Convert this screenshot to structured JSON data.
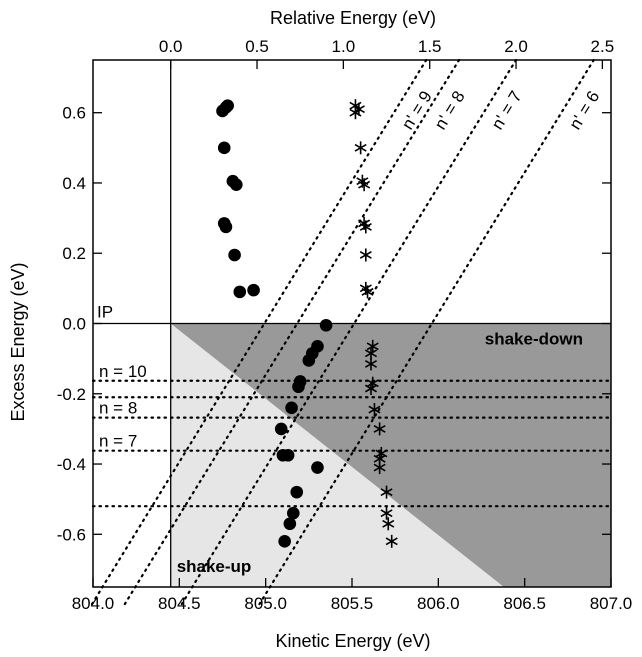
{
  "chart_data": {
    "type": "scatter",
    "title": "",
    "xlabel": "Kinetic Energy (eV)",
    "ylabel": "Excess Energy (eV)",
    "x2label": "Relative Energy (eV)",
    "xlim": [
      804.0,
      807.0
    ],
    "ylim": [
      -0.75,
      0.75
    ],
    "x_ticks": [
      "804.0",
      "804.5",
      "805.0",
      "805.5",
      "806.0",
      "806.5",
      "807.0"
    ],
    "x2_ticks": [
      "0.0",
      "0.5",
      "1.0",
      "1.5",
      "2.0",
      "2.5"
    ],
    "y_ticks": [
      "-0.6",
      "-0.4",
      "-0.2",
      "0.0",
      "0.2",
      "0.4",
      "0.6"
    ],
    "ip_energy": 804.45,
    "ip_label": "IP",
    "regions": {
      "shake_up": {
        "label": "shake-up",
        "color": "#e6e6e6"
      },
      "shake_down": {
        "label": "shake-down",
        "color": "#999999"
      }
    },
    "dotted_levels": [
      {
        "y": -0.163,
        "label": "n = 10"
      },
      {
        "y": -0.21,
        "label": ""
      },
      {
        "y": -0.268,
        "label": "n = 8"
      },
      {
        "y": -0.362,
        "label": "n = 7"
      },
      {
        "y": -0.52,
        "label": ""
      }
    ],
    "rydberg_lines": [
      {
        "label": "n' = 9",
        "x_at_top": 805.93
      },
      {
        "label": "n' = 8",
        "x_at_top": 806.12
      },
      {
        "label": "n' = 7",
        "x_at_top": 806.45
      },
      {
        "label": "n' = 6",
        "x_at_top": 806.9
      }
    ],
    "rydberg_slope_ev_per_ev": 0.8,
    "series": [
      {
        "marker": "circle",
        "points": [
          [
            804.75,
            0.605
          ],
          [
            804.77,
            0.615
          ],
          [
            804.78,
            0.62
          ],
          [
            804.76,
            0.5
          ],
          [
            804.81,
            0.405
          ],
          [
            804.83,
            0.395
          ],
          [
            804.76,
            0.285
          ],
          [
            804.77,
            0.275
          ],
          [
            804.82,
            0.195
          ],
          [
            804.85,
            0.09
          ],
          [
            804.93,
            0.095
          ],
          [
            805.35,
            -0.005
          ],
          [
            805.3,
            -0.065
          ],
          [
            805.27,
            -0.085
          ],
          [
            805.25,
            -0.105
          ],
          [
            805.2,
            -0.165
          ],
          [
            805.19,
            -0.18
          ],
          [
            805.15,
            -0.24
          ],
          [
            805.09,
            -0.3
          ],
          [
            805.1,
            -0.375
          ],
          [
            805.13,
            -0.375
          ],
          [
            805.3,
            -0.41
          ],
          [
            805.18,
            -0.48
          ],
          [
            805.16,
            -0.54
          ],
          [
            805.14,
            -0.57
          ],
          [
            805.11,
            -0.62
          ]
        ]
      },
      {
        "marker": "asterisk",
        "points": [
          [
            805.52,
            0.62
          ],
          [
            805.54,
            0.61
          ],
          [
            805.52,
            0.6
          ],
          [
            805.55,
            0.5
          ],
          [
            805.56,
            0.405
          ],
          [
            805.57,
            0.395
          ],
          [
            805.57,
            0.285
          ],
          [
            805.58,
            0.275
          ],
          [
            805.58,
            0.195
          ],
          [
            805.58,
            0.1
          ],
          [
            805.59,
            0.09
          ],
          [
            805.62,
            -0.065
          ],
          [
            805.61,
            -0.085
          ],
          [
            805.61,
            -0.115
          ],
          [
            805.62,
            -0.17
          ],
          [
            805.61,
            -0.185
          ],
          [
            805.63,
            -0.245
          ],
          [
            805.66,
            -0.3
          ],
          [
            805.67,
            -0.37
          ],
          [
            805.66,
            -0.385
          ],
          [
            805.66,
            -0.41
          ],
          [
            805.7,
            -0.48
          ],
          [
            805.7,
            -0.54
          ],
          [
            805.71,
            -0.57
          ],
          [
            805.73,
            -0.62
          ]
        ]
      }
    ]
  }
}
